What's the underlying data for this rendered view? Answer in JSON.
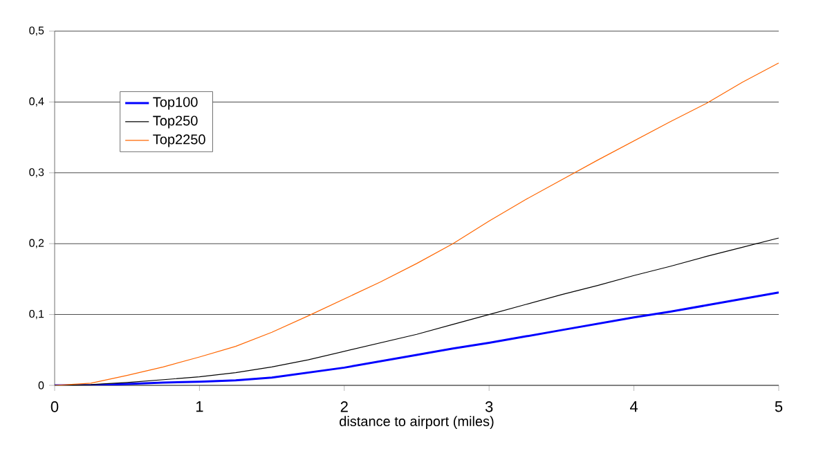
{
  "chart_data": {
    "type": "line",
    "xlabel": "distance to airport (miles)",
    "x": [
      0,
      0.25,
      0.5,
      0.75,
      1,
      1.25,
      1.5,
      1.75,
      2,
      2.25,
      2.5,
      2.75,
      3,
      3.25,
      3.5,
      3.75,
      4,
      4.25,
      4.5,
      4.75,
      5
    ],
    "series": [
      {
        "name": "Top100",
        "color": "#0000ff",
        "values": [
          0,
          0,
          0.002,
          0.004,
          0.005,
          0.007,
          0.011,
          0.018,
          0.025,
          0.034,
          0.043,
          0.052,
          0.06,
          0.069,
          0.078,
          0.087,
          0.096,
          0.104,
          0.113,
          0.122,
          0.131
        ]
      },
      {
        "name": "Top250",
        "color": "#000000",
        "values": [
          0,
          0.001,
          0.004,
          0.008,
          0.012,
          0.018,
          0.026,
          0.036,
          0.048,
          0.06,
          0.072,
          0.086,
          0.1,
          0.114,
          0.128,
          0.141,
          0.155,
          0.168,
          0.182,
          0.195,
          0.208
        ]
      },
      {
        "name": "Top2250",
        "color": "#ff6600",
        "values": [
          0,
          0.003,
          0.014,
          0.026,
          0.04,
          0.055,
          0.075,
          0.098,
          0.122,
          0.146,
          0.172,
          0.2,
          0.232,
          0.262,
          0.29,
          0.318,
          0.345,
          0.372,
          0.398,
          0.428,
          0.455
        ]
      }
    ],
    "xlim": [
      0,
      5
    ],
    "xticks": [
      0,
      1,
      2,
      3,
      4,
      5
    ],
    "ylim": [
      0,
      0.5
    ],
    "yticks": [
      0,
      {
        "value": 0.1,
        "label": "0,1"
      },
      {
        "value": 0.2,
        "label": "0,2"
      },
      {
        "value": 0.3,
        "label": "0,3"
      },
      {
        "value": 0.4,
        "label": "0,4"
      },
      {
        "value": 0.5,
        "label": "0,5"
      }
    ],
    "grid": "y",
    "legend": "top left",
    "marker": "none",
    "line_style": "solid"
  }
}
